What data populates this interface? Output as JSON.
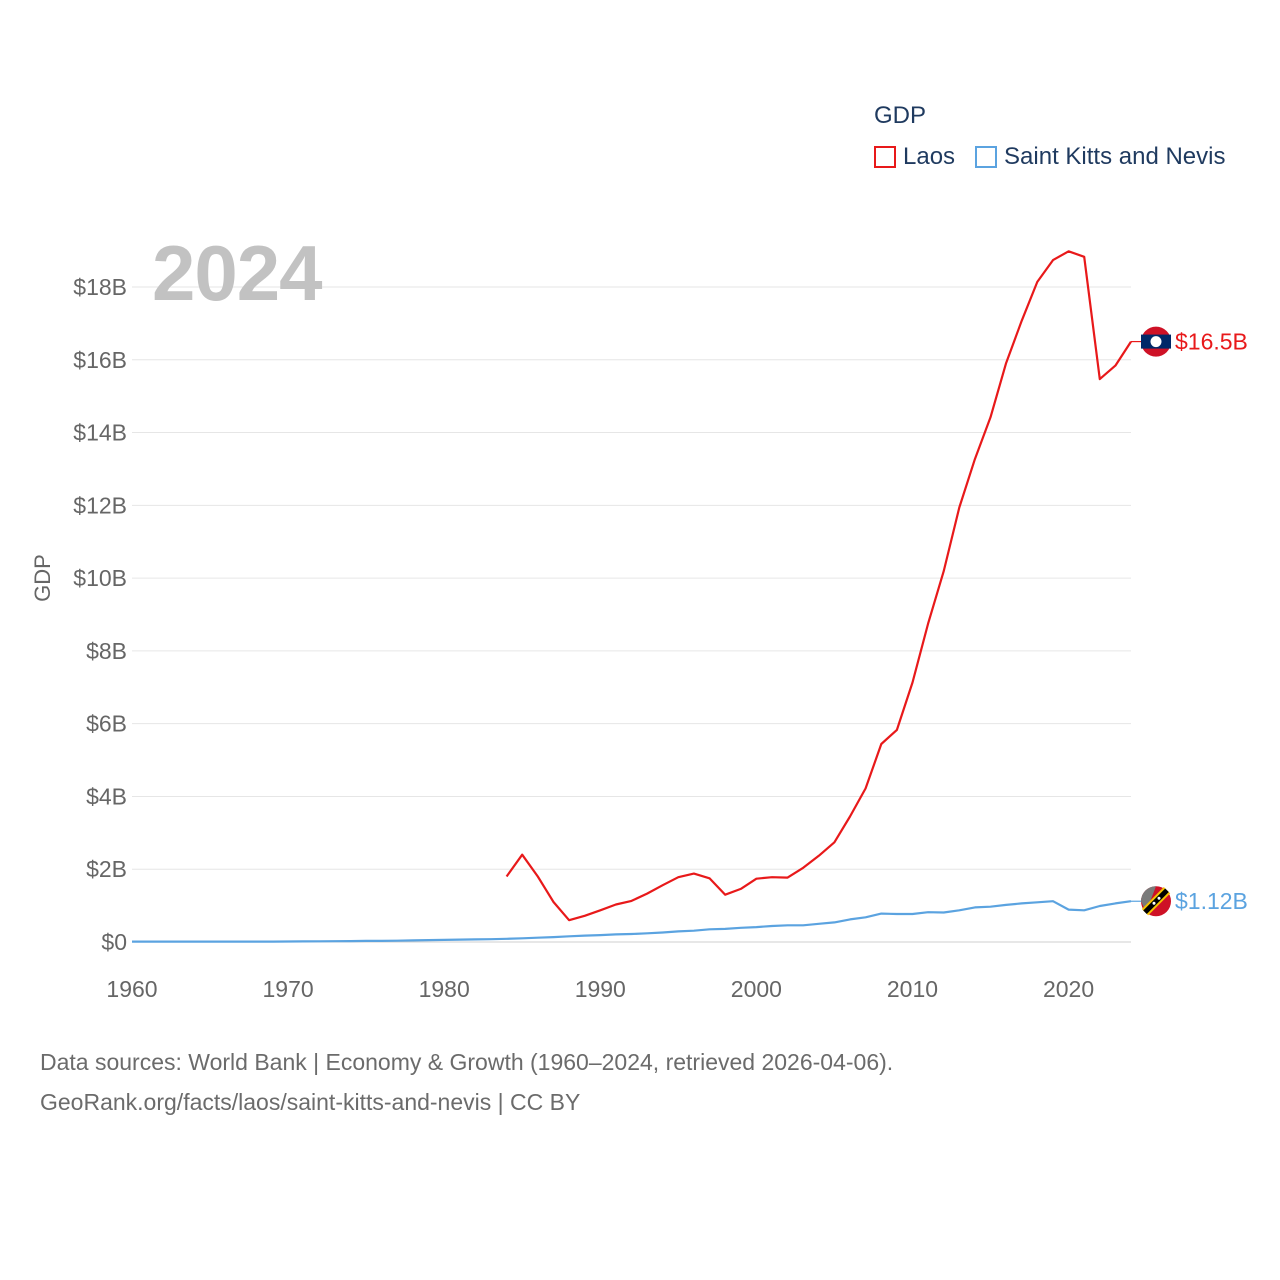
{
  "legend": {
    "title": "GDP",
    "items": [
      {
        "name": "Laos",
        "color": "#e8191a"
      },
      {
        "name": "Saint Kitts and Nevis",
        "color": "#5ba3e0"
      }
    ]
  },
  "year_label": "2024",
  "footer": {
    "line1": "Data sources: World Bank | Economy & Growth (1960–2024, retrieved 2026-04-06).",
    "line2": "GeoRank.org/facts/laos/saint-kitts-and-nevis | CC BY"
  },
  "chart_data": {
    "type": "line",
    "title": "GDP",
    "xlabel": "",
    "ylabel": "GDP",
    "xlim": [
      1960,
      2024
    ],
    "ylim": [
      0,
      19
    ],
    "y_unit": "billion USD",
    "x_ticks": [
      "1960",
      "1970",
      "1980",
      "1990",
      "2000",
      "2010",
      "2020"
    ],
    "y_ticks": [
      {
        "value": 0,
        "label": "$0"
      },
      {
        "value": 2,
        "label": "$2B"
      },
      {
        "value": 4,
        "label": "$4B"
      },
      {
        "value": 6,
        "label": "$6B"
      },
      {
        "value": 8,
        "label": "$8B"
      },
      {
        "value": 10,
        "label": "$10B"
      },
      {
        "value": 12,
        "label": "$12B"
      },
      {
        "value": 14,
        "label": "$14B"
      },
      {
        "value": 16,
        "label": "$16B"
      },
      {
        "value": 18,
        "label": "$18B"
      }
    ],
    "series": [
      {
        "name": "Laos",
        "color": "#e8191a",
        "end_label": "$16.5B",
        "x": [
          1984,
          1985,
          1986,
          1987,
          1988,
          1989,
          1990,
          1991,
          1992,
          1993,
          1994,
          1995,
          1996,
          1997,
          1998,
          1999,
          2000,
          2001,
          2002,
          2003,
          2004,
          2005,
          2006,
          2007,
          2008,
          2009,
          2010,
          2011,
          2012,
          2013,
          2014,
          2015,
          2016,
          2017,
          2018,
          2019,
          2020,
          2021,
          2022,
          2023,
          2024
        ],
        "values": [
          1.8,
          2.4,
          1.8,
          1.1,
          0.6,
          0.72,
          0.87,
          1.03,
          1.13,
          1.33,
          1.56,
          1.78,
          1.88,
          1.75,
          1.3,
          1.46,
          1.74,
          1.78,
          1.77,
          2.04,
          2.37,
          2.74,
          3.45,
          4.22,
          5.44,
          5.83,
          7.13,
          8.75,
          10.19,
          11.94,
          13.27,
          14.42,
          15.91,
          17.07,
          18.14,
          18.74,
          18.98,
          18.83,
          15.47,
          15.84,
          16.5
        ]
      },
      {
        "name": "Saint Kitts and Nevis",
        "color": "#5ba3e0",
        "end_label": "$1.12B",
        "x": [
          1960,
          1961,
          1962,
          1963,
          1964,
          1965,
          1966,
          1967,
          1968,
          1969,
          1970,
          1971,
          1972,
          1973,
          1974,
          1975,
          1976,
          1977,
          1978,
          1979,
          1980,
          1981,
          1982,
          1983,
          1984,
          1985,
          1986,
          1987,
          1988,
          1989,
          1990,
          1991,
          1992,
          1993,
          1994,
          1995,
          1996,
          1997,
          1998,
          1999,
          2000,
          2001,
          2002,
          2003,
          2004,
          2005,
          2006,
          2007,
          2008,
          2009,
          2010,
          2011,
          2012,
          2013,
          2014,
          2015,
          2016,
          2017,
          2018,
          2019,
          2020,
          2021,
          2022,
          2023,
          2024
        ],
        "values": [
          0.01,
          0.01,
          0.01,
          0.01,
          0.01,
          0.01,
          0.01,
          0.01,
          0.01,
          0.01,
          0.015,
          0.016,
          0.018,
          0.022,
          0.026,
          0.029,
          0.031,
          0.036,
          0.043,
          0.052,
          0.059,
          0.066,
          0.072,
          0.077,
          0.088,
          0.102,
          0.117,
          0.135,
          0.157,
          0.176,
          0.19,
          0.21,
          0.22,
          0.24,
          0.26,
          0.29,
          0.31,
          0.35,
          0.36,
          0.39,
          0.41,
          0.44,
          0.46,
          0.46,
          0.5,
          0.54,
          0.62,
          0.68,
          0.78,
          0.77,
          0.77,
          0.82,
          0.81,
          0.87,
          0.95,
          0.97,
          1.02,
          1.06,
          1.09,
          1.12,
          0.89,
          0.87,
          0.99,
          1.06,
          1.12
        ]
      }
    ]
  }
}
